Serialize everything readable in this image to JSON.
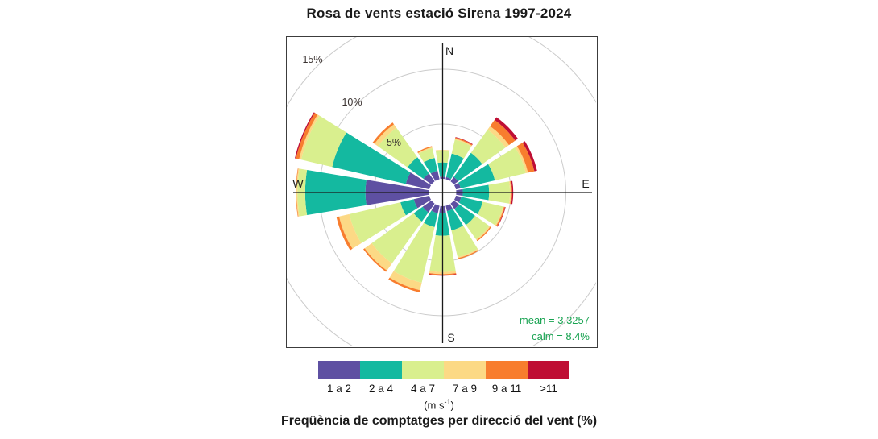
{
  "page": {
    "title": "Rosa de vents estació Sirena 1997-2024",
    "caption": "Freqüència de comptatges per direcció del vent (%)"
  },
  "chart_data": {
    "type": "windrose (stacked polar bar)",
    "title": "Rosa de vents estació Sirena 1997-2024",
    "xlabel": "Freqüència de comptatges per direcció del vent (%)",
    "units_prefix": "(m s",
    "units_sup": "-1",
    "units_suffix": ")",
    "compass": {
      "n": "N",
      "e": "E",
      "s": "S",
      "w": "W"
    },
    "rings_pct": [
      5,
      10,
      15
    ],
    "ring_labels": [
      "5%",
      "10%",
      "15%"
    ],
    "speed_bins": [
      {
        "label": "1 a 2",
        "color": "#5e50a2"
      },
      {
        "label": "2 a 4",
        "color": "#14b9a0"
      },
      {
        "label": "4 a 7",
        "color": "#d9ef8e"
      },
      {
        "label": "7 a 9",
        "color": "#fcd985"
      },
      {
        "label": "9 a 11",
        "color": "#f87d2e"
      },
      {
        "label": ">11",
        "color": "#bf0e34"
      }
    ],
    "directions": [
      "N",
      "NNE",
      "NE",
      "ENE",
      "E",
      "ESE",
      "SE",
      "SSE",
      "S",
      "SSW",
      "SW",
      "WSW",
      "W",
      "WNW",
      "NW",
      "NNW"
    ],
    "series": [
      {
        "dir": "N",
        "values": [
          0.2,
          1.3,
          1.1,
          0.05,
          0.0,
          0.0
        ]
      },
      {
        "dir": "NNE",
        "values": [
          0.2,
          2.2,
          1.3,
          0.1,
          0.1,
          0.05
        ]
      },
      {
        "dir": "NE",
        "values": [
          0.5,
          2.7,
          2.6,
          0.4,
          0.7,
          0.3
        ]
      },
      {
        "dir": "ENE",
        "values": [
          0.45,
          3.2,
          2.9,
          0.2,
          0.6,
          0.25
        ]
      },
      {
        "dir": "E",
        "values": [
          0.6,
          2.4,
          1.9,
          0.1,
          0.1,
          0.1
        ]
      },
      {
        "dir": "ESE",
        "values": [
          0.5,
          2.0,
          1.9,
          0.1,
          0.1,
          0.05
        ]
      },
      {
        "dir": "SE",
        "values": [
          0.6,
          1.8,
          1.6,
          0.1,
          0.1,
          0.0
        ]
      },
      {
        "dir": "SSE",
        "values": [
          0.5,
          1.8,
          2.5,
          0.1,
          0.1,
          0.0
        ]
      },
      {
        "dir": "S",
        "values": [
          0.6,
          2.1,
          3.3,
          0.2,
          0.1,
          0.05
        ]
      },
      {
        "dir": "SSW",
        "values": [
          0.7,
          1.3,
          5.2,
          0.7,
          0.2,
          0.0
        ]
      },
      {
        "dir": "SW",
        "values": [
          1.0,
          1.0,
          4.7,
          0.8,
          0.15,
          0.0
        ]
      },
      {
        "dir": "WSW",
        "values": [
          1.45,
          1.25,
          4.8,
          0.95,
          0.25,
          0.0
        ]
      },
      {
        "dir": "W",
        "values": [
          5.8,
          5.5,
          0.7,
          0.1,
          0.05,
          0.0
        ]
      },
      {
        "dir": "WNW",
        "values": [
          2.2,
          6.9,
          2.9,
          0.2,
          0.3,
          0.1
        ]
      },
      {
        "dir": "NW",
        "values": [
          0.9,
          1.8,
          3.3,
          0.4,
          0.2,
          0.0
        ]
      },
      {
        "dir": "NNW",
        "values": [
          0.8,
          1.2,
          0.9,
          0.1,
          0.1,
          0.0
        ]
      }
    ],
    "annotations": {
      "mean": "mean = 3.3257",
      "calm": "calm = 8.4%",
      "color": "#18a351"
    },
    "layout_hints": {
      "legend_position": "bottom",
      "grid": "on",
      "radial_axis_max_pct": 15
    }
  }
}
